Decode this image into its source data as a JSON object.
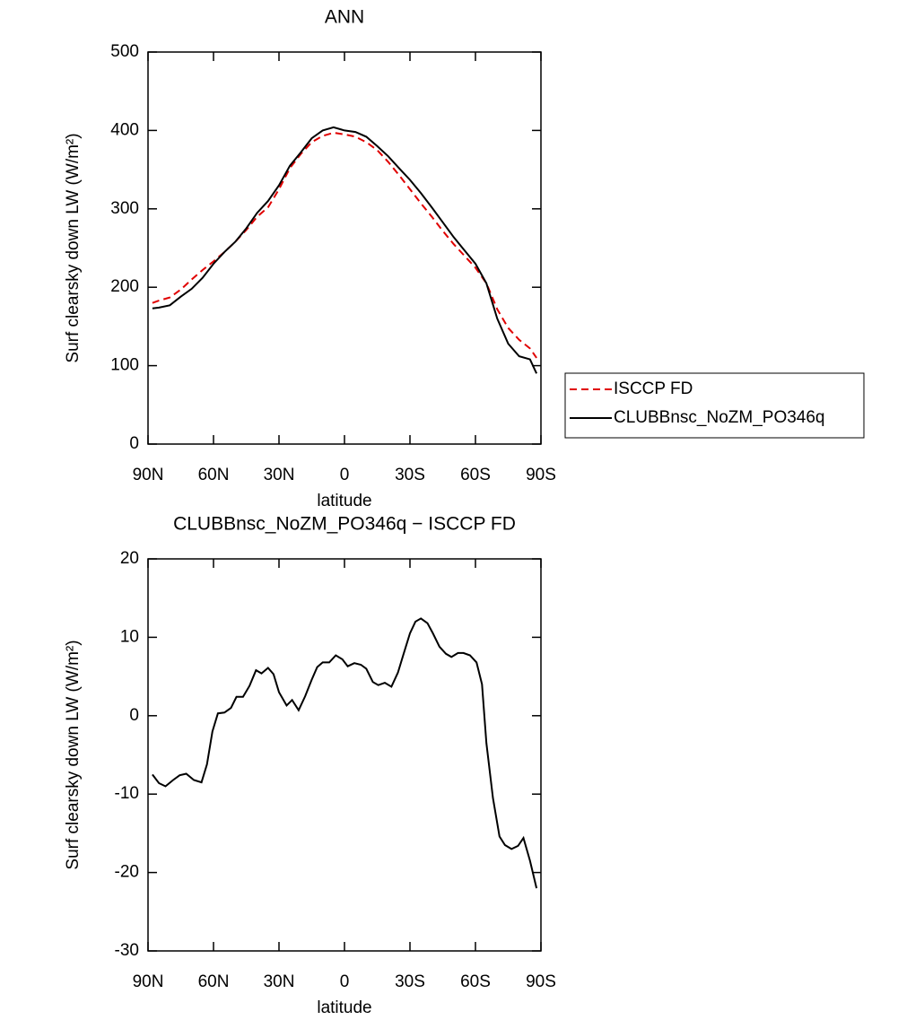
{
  "chart_data": [
    {
      "type": "line",
      "title": "ANN",
      "x_label": "latitude",
      "y_label": "Surf clearsky down LW (W/m²)",
      "x": [
        88,
        85,
        80,
        75,
        70,
        65,
        60,
        55,
        50,
        45,
        40,
        35,
        30,
        25,
        20,
        15,
        10,
        5,
        0,
        -5,
        -10,
        -15,
        -20,
        -25,
        -30,
        -35,
        -40,
        -45,
        -50,
        -55,
        -60,
        -65,
        -70,
        -75,
        -80,
        -85,
        -88
      ],
      "series": [
        {
          "name": "ISCCP FD",
          "color": "#e00000",
          "dash": true,
          "values": [
            180,
            183,
            187,
            197,
            210,
            222,
            233,
            245,
            258,
            273,
            290,
            302,
            325,
            352,
            370,
            385,
            393,
            397,
            395,
            392,
            385,
            375,
            360,
            343,
            325,
            307,
            290,
            272,
            255,
            240,
            225,
            205,
            172,
            148,
            133,
            122,
            110
          ]
        },
        {
          "name": "CLUBBnsc_NoZM_PO346q",
          "color": "#000000",
          "dash": false,
          "values": [
            173,
            174,
            177,
            188,
            198,
            212,
            230,
            245,
            258,
            275,
            295,
            310,
            330,
            355,
            372,
            390,
            400,
            404,
            400,
            398,
            392,
            380,
            367,
            352,
            337,
            320,
            302,
            283,
            264,
            247,
            230,
            205,
            160,
            128,
            112,
            108,
            90
          ]
        }
      ],
      "xlim": [
        90,
        -90
      ],
      "xticks": [
        {
          "value": 90,
          "label": "90N"
        },
        {
          "value": 60,
          "label": "60N"
        },
        {
          "value": 30,
          "label": "30N"
        },
        0,
        {
          "value": -30,
          "label": "30S"
        },
        {
          "value": -60,
          "label": "60S"
        },
        {
          "value": -90,
          "label": "90S"
        }
      ],
      "ylim": [
        0,
        500
      ],
      "yticks": [
        0,
        100,
        200,
        300,
        400,
        500
      ],
      "legend": "right"
    },
    {
      "type": "line",
      "title": "CLUBBnsc_NoZM_PO346q − ISCCP FD",
      "x_label": "latitude",
      "y_label": "Surf clearsky down LW (W/m²)",
      "x": [
        88,
        85,
        82,
        78.5,
        75.5,
        72.5,
        69,
        65.5,
        63,
        60.5,
        58,
        55,
        52,
        49.5,
        46.5,
        43.5,
        40.5,
        38,
        35,
        32.5,
        30,
        26.5,
        24,
        21,
        18,
        15,
        12.5,
        10,
        7,
        4,
        1,
        -1.5,
        -4.5,
        -7.5,
        -10,
        -13,
        -15.5,
        -18.5,
        -21.5,
        -24.5,
        -27,
        -30,
        -32.5,
        -35,
        -38,
        -40.5,
        -43.5,
        -46.5,
        -49,
        -52,
        -54.5,
        -57.5,
        -60.5,
        -63,
        -65,
        -68,
        -71,
        -73.5,
        -76.5,
        -79.5,
        -82,
        -85,
        -88
      ],
      "series": [
        {
          "color": "#000000",
          "dash": false,
          "values": [
            -7.5,
            -8.6,
            -9,
            -8.2,
            -7.6,
            -7.4,
            -8.2,
            -8.5,
            -6.2,
            -2,
            0.3,
            0.4,
            1,
            2.4,
            2.4,
            3.8,
            5.8,
            5.4,
            6.1,
            5.3,
            3,
            1.3,
            2,
            0.7,
            2.5,
            4.6,
            6.2,
            6.8,
            6.8,
            7.7,
            7.2,
            6.3,
            6.7,
            6.5,
            6,
            4.3,
            3.9,
            4.2,
            3.7,
            5.5,
            7.8,
            10.5,
            12,
            12.4,
            11.8,
            10.5,
            8.8,
            7.9,
            7.5,
            8,
            8,
            7.7,
            6.8,
            4,
            -3.5,
            -10.5,
            -15.4,
            -16.5,
            -17,
            -16.6,
            -15.6,
            -18.5,
            -22
          ]
        }
      ],
      "xlim": [
        90,
        -90
      ],
      "xticks": [
        {
          "value": 90,
          "label": "90N"
        },
        {
          "value": 60,
          "label": "60N"
        },
        {
          "value": 30,
          "label": "30N"
        },
        0,
        {
          "value": -30,
          "label": "30S"
        },
        {
          "value": -60,
          "label": "60S"
        },
        {
          "value": -90,
          "label": "90S"
        }
      ],
      "ylim": [
        -30,
        20
      ],
      "yticks": [
        -30,
        -20,
        -10,
        0,
        10,
        20
      ]
    }
  ]
}
